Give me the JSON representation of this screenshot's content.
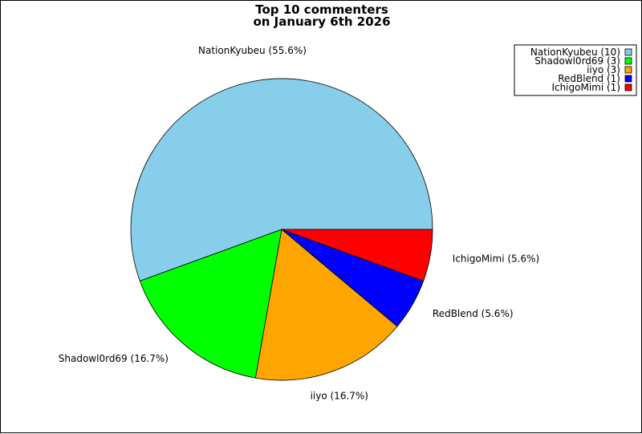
{
  "chart_data": {
    "type": "pie",
    "title": "Top 10 commenters",
    "subtitle": "on January 6th 2026",
    "legend_position": "top-right",
    "slices": [
      {
        "name": "NationKyubeu",
        "value": 10,
        "percent_label": "NationKyubeu (55.6%)",
        "legend_label": "NationKyubeu (10)",
        "color": "#87ceeb"
      },
      {
        "name": "Shadowl0rd69",
        "value": 3,
        "percent_label": "Shadowl0rd69 (16.7%)",
        "legend_label": "Shadowl0rd69 (3)",
        "color": "#00ff00"
      },
      {
        "name": "iiyo",
        "value": 3,
        "percent_label": "iiyo (16.7%)",
        "legend_label": "iiyo (3)",
        "color": "#ffa500"
      },
      {
        "name": "RedBlend",
        "value": 1,
        "percent_label": "RedBlend (5.6%)",
        "legend_label": "RedBlend (1)",
        "color": "#0000ff"
      },
      {
        "name": "IchigoMimi",
        "value": 1,
        "percent_label": "IchigoMimi (5.6%)",
        "legend_label": "IchigoMimi (1)",
        "color": "#ff0000"
      }
    ]
  }
}
